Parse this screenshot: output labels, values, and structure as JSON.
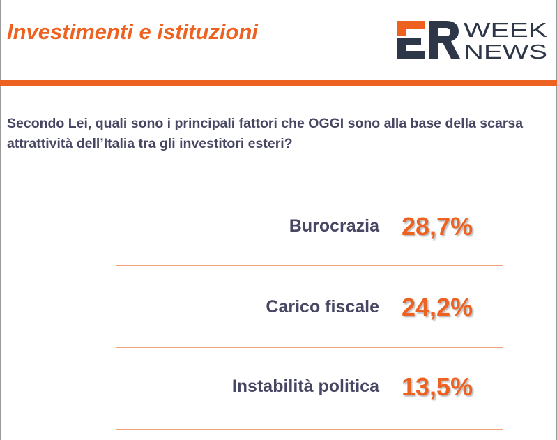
{
  "header": {
    "title": "Investimenti e istituzioni",
    "logo": {
      "mark": "ER",
      "line1": "WEEK",
      "line2": "NEWS"
    }
  },
  "question": "Secondo Lei, quali sono i principali fattori che OGGI sono alla base della scarsa attrattività dell’Italia tra gli investitori esteri?",
  "colors": {
    "accent": "#ee6221",
    "text": "#474763",
    "divider": "#f0a37b",
    "logo_dark": "#2d3748"
  },
  "chart_data": {
    "type": "table",
    "title": "",
    "rows": [
      {
        "label": "Burocrazia",
        "value": 28.7,
        "display": "28,7%"
      },
      {
        "label": "Carico fiscale",
        "value": 24.2,
        "display": "24,2%"
      },
      {
        "label": "Instabilità politica",
        "value": 13.5,
        "display": "13,5%"
      }
    ]
  }
}
